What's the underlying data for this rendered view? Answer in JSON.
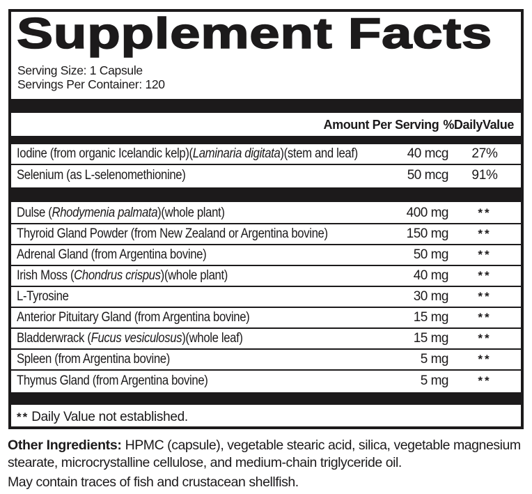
{
  "panel": {
    "title": "Supplement Facts",
    "serving_size": "Serving Size: 1 Capsule",
    "servings_per_container": "Servings Per Container: 120",
    "col_amount": "Amount Per Serving",
    "col_dv": "%DailyValue",
    "rows_top": [
      {
        "pre": "Iodine (from organic Icelandic kelp)(",
        "it": "Laminaria digitata",
        "post": ")(stem and leaf)",
        "amount": "40 mcg",
        "dv": "27%"
      },
      {
        "pre": "Selenium (as L-selenomethionine)",
        "it": "",
        "post": "",
        "amount": "50 mcg",
        "dv": "91%"
      }
    ],
    "rows_bottom": [
      {
        "pre": "Dulse (",
        "it": "Rhodymenia palmata",
        "post": ")(whole plant)",
        "amount": "400 mg",
        "dv": "**"
      },
      {
        "pre": "Thyroid Gland Powder (from New Zealand or Argentina bovine)",
        "it": "",
        "post": "",
        "amount": "150 mg",
        "dv": "**"
      },
      {
        "pre": "Adrenal Gland (from Argentina bovine)",
        "it": "",
        "post": "",
        "amount": "50 mg",
        "dv": "**"
      },
      {
        "pre": "Irish Moss (",
        "it": "Chondrus crispus",
        "post": ")(whole plant)",
        "amount": "40 mg",
        "dv": "**"
      },
      {
        "pre": "L-Tyrosine",
        "it": "",
        "post": "",
        "amount": "30 mg",
        "dv": "**"
      },
      {
        "pre": "Anterior Pituitary Gland (from Argentina bovine)",
        "it": "",
        "post": "",
        "amount": "15 mg",
        "dv": "**"
      },
      {
        "pre": "Bladderwrack (",
        "it": "Fucus vesiculosus",
        "post": ")(whole leaf)",
        "amount": "15 mg",
        "dv": "**"
      },
      {
        "pre": "Spleen (from Argentina bovine)",
        "it": "",
        "post": "",
        "amount": "5 mg",
        "dv": "**"
      },
      {
        "pre": "Thymus Gland (from Argentina bovine)",
        "it": "",
        "post": "",
        "amount": "5 mg",
        "dv": "**"
      }
    ],
    "footnote_marker": "**",
    "footnote": "Daily Value not established."
  },
  "footer": {
    "other_label": "Other Ingredients:",
    "other_text": " HPMC (capsule),  vegetable stearic acid, silica, vegetable magnesium stearate, microcrystalline cellulose, and medium-chain triglyceride oil.",
    "allergen": "May contain traces of fish and crustacean shellfish."
  },
  "colors": {
    "ink": "#1c1a1b",
    "background": "#ffffff"
  }
}
